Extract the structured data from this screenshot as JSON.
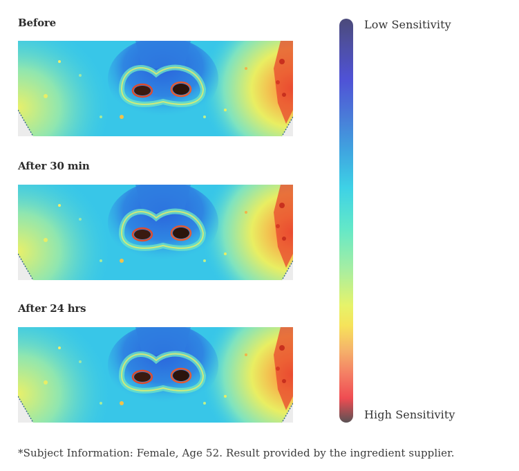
{
  "panels": [
    {
      "label": "Before"
    },
    {
      "label": "After 30 min"
    },
    {
      "label": "After 24 hrs"
    }
  ],
  "scale": {
    "top_label": "Low Sensitivity",
    "bottom_label": "High Sensitivity",
    "colors": [
      "#4b4a7a",
      "#4f52d6",
      "#3fa6e0",
      "#63e8c8",
      "#e6f36a",
      "#f47e64",
      "#ef4c52",
      "#5a5254"
    ]
  },
  "footnote": "*Subject Information: Female, Age 52. Result provided by the ingredient supplier."
}
